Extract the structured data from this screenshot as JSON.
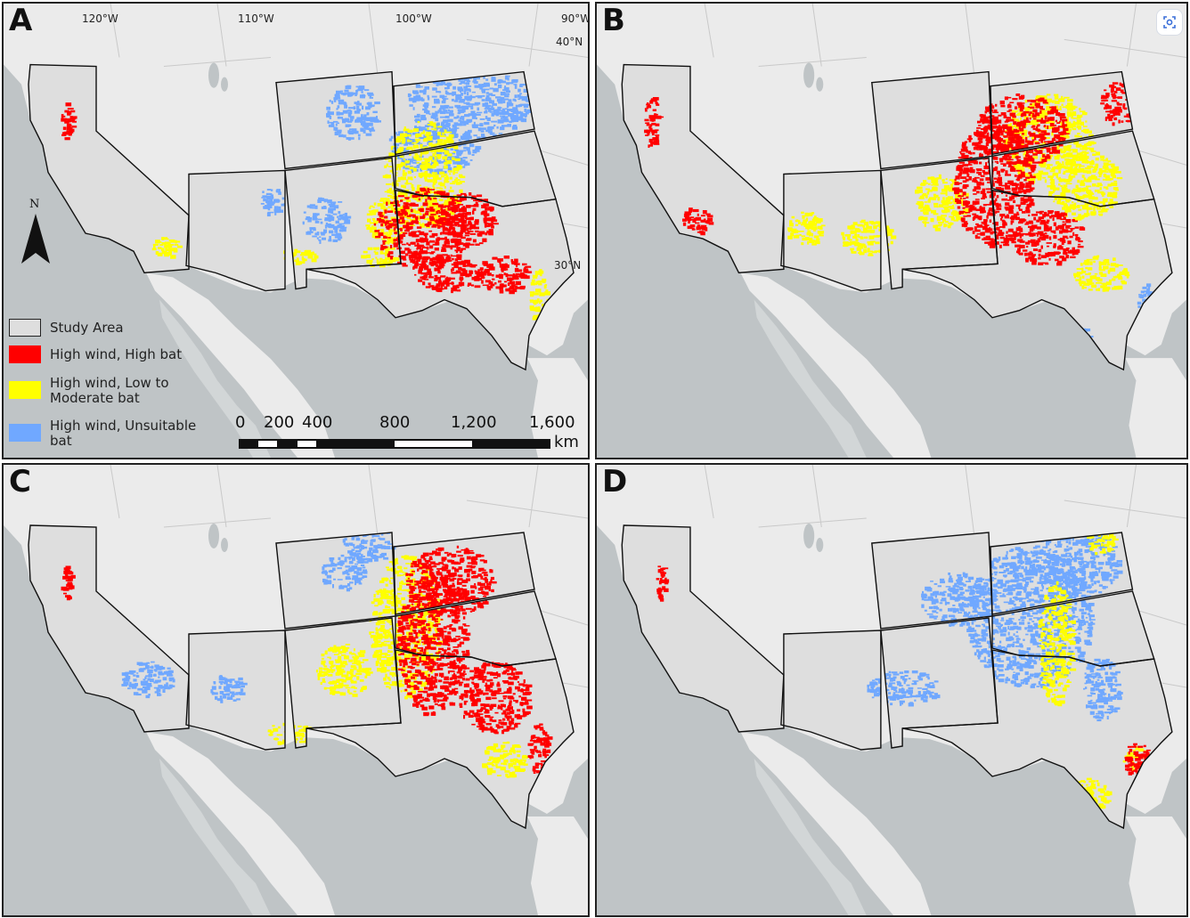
{
  "panels": [
    {
      "label": "A",
      "variant": "A"
    },
    {
      "label": "B",
      "variant": "B"
    },
    {
      "label": "C",
      "variant": "C"
    },
    {
      "label": "D",
      "variant": "D"
    }
  ],
  "grid_labels": {
    "lon": [
      "120°W",
      "110°W",
      "100°W",
      "90°W"
    ],
    "lat": [
      "40°N",
      "30°N"
    ]
  },
  "north_arrow": {
    "label": "N"
  },
  "legend": {
    "study_area": "Study Area",
    "items": [
      {
        "label": "High wind, High bat",
        "color": "#ff0000"
      },
      {
        "label": "High wind, Low to\nModerate bat",
        "color": "#ffff00"
      },
      {
        "label": "High wind, Unsuitable\nbat",
        "color": "#70a8ff"
      }
    ]
  },
  "scale_bar": {
    "ticks": [
      "0",
      "200",
      "400",
      "800",
      "1,200",
      "1,600"
    ],
    "unit": "km"
  },
  "colors": {
    "land": "#ebebeb",
    "water": "#bfc4c6",
    "study_fill": "#dedede",
    "high_bat": "#ff0000",
    "moderate_bat": "#ffff00",
    "unsuitable_bat": "#70a8ff"
  },
  "toolbar": {
    "focus_icon": "focus-icon"
  }
}
